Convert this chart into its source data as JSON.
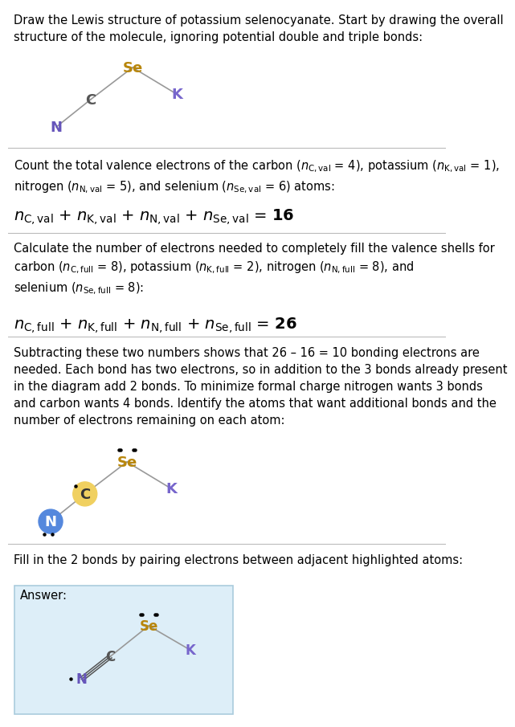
{
  "title_text": "Draw the Lewis structure of potassium selenocyanate. Start by drawing the overall structure of the molecule, ignoring potential double and triple bonds:",
  "s1_text": "Count the total valence electrons of the carbon (n",
  "s1_eq_label": "$n_{\\mathrm{C,val}}$ + $n_{\\mathrm{K,val}}$ + $n_{\\mathrm{N,val}}$ + $n_{\\mathrm{Se,val}}$ = 16",
  "s2_text": "Calculate the number of electrons needed to completely fill the valence shells for carbon (n",
  "s2_eq_label": "$n_{\\mathrm{C,full}}$ + $n_{\\mathrm{K,full}}$ + $n_{\\mathrm{N,full}}$ + $n_{\\mathrm{Se,full}}$ = 26",
  "s3_text": "Subtracting these two numbers shows that 26 – 16 = 10 bonding electrons are needed. Each bond has two electrons, so in addition to the 3 bonds already present in the diagram add 2 bonds. To minimize formal charge nitrogen wants 3 bonds and carbon wants 4 bonds. Identify the atoms that want additional bonds and the number of electrons remaining on each atom:",
  "s4_text": "Fill in the 2 bonds by pairing electrons between adjacent highlighted atoms:",
  "answer_label": "Answer:",
  "color_Se": "#b8860b",
  "color_C": "#555555",
  "color_N": "#6655bb",
  "color_K": "#7766cc",
  "color_highlight_C": "#f0d060",
  "color_highlight_N": "#5588dd",
  "bg_answer": "#ddeef8",
  "bg_white": "#ffffff",
  "line_color": "#bbbbbb"
}
